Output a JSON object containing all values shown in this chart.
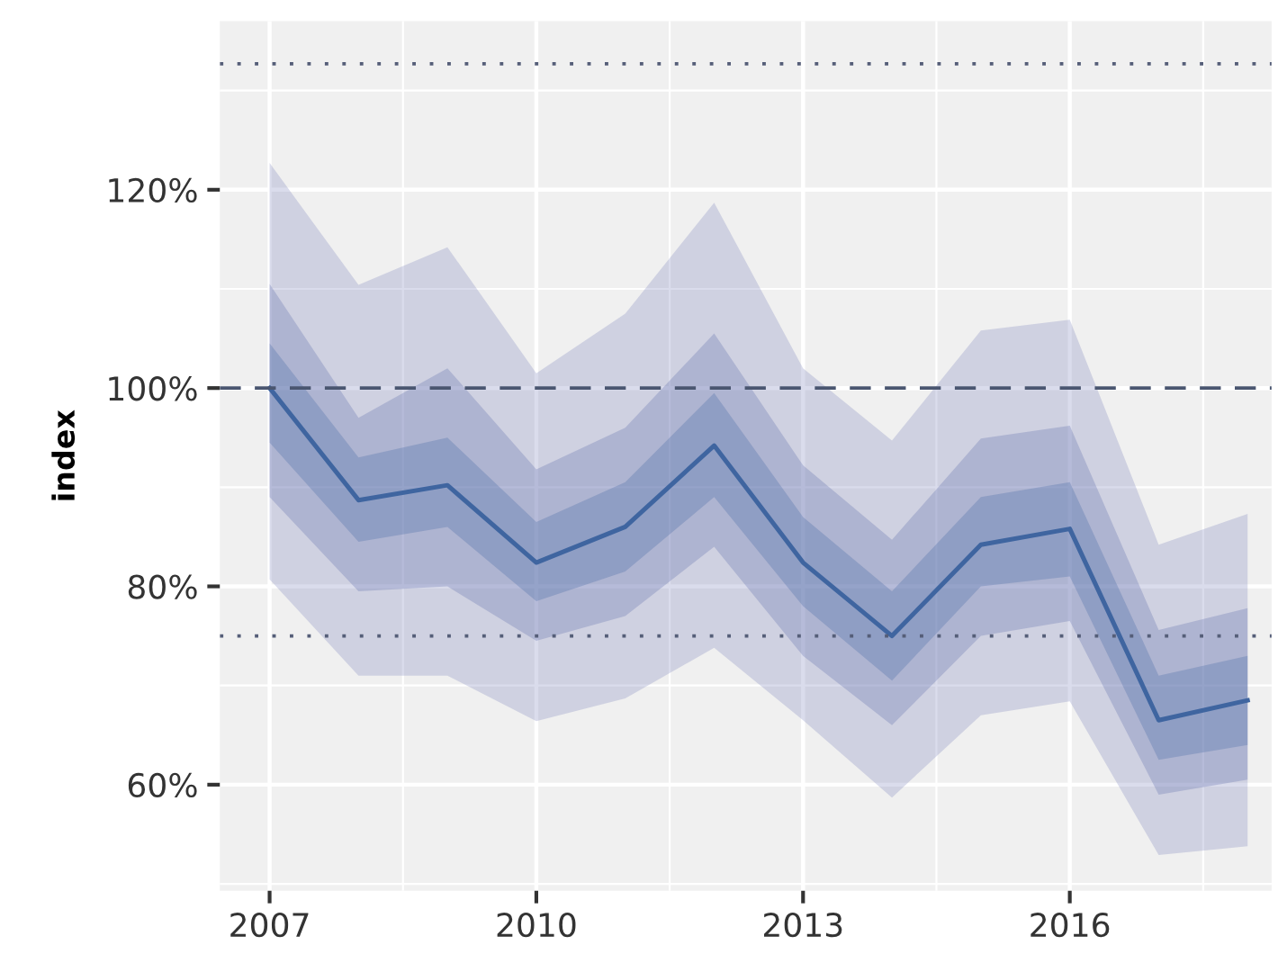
{
  "chart_data": {
    "type": "line",
    "ylabel": "index",
    "x": [
      2007,
      2008,
      2009,
      2010,
      2011,
      2012,
      2013,
      2014,
      2015,
      2016,
      2017,
      2018
    ],
    "series": [
      {
        "color": "#7b80bb",
        "values": [
          null,
          null,
          null,
          null,
          null,
          null,
          null,
          null,
          null,
          null,
          null,
          null
        ],
        "upper": [
          122.7,
          110.4,
          114.2,
          101.5,
          107.5,
          118.7,
          102,
          94.7,
          105.8,
          106.9,
          84.2,
          87.3
        ],
        "lower": [
          80.7,
          71,
          71,
          66.4,
          68.7,
          73.8,
          66.5,
          58.7,
          67,
          68.4,
          52.9,
          53.8
        ]
      },
      {
        "color": "#5a68aa",
        "values": [
          null,
          null,
          null,
          null,
          null,
          null,
          null,
          null,
          null,
          null,
          null,
          null
        ],
        "upper": [
          110.5,
          97,
          102,
          91.8,
          96,
          105.5,
          92.2,
          84.7,
          94.9,
          96.2,
          75.6,
          77.8
        ],
        "lower": [
          89,
          79.5,
          80,
          74.5,
          77,
          84,
          73,
          66,
          75,
          76.5,
          59,
          60.5
        ]
      },
      {
        "color": "#3f65a0",
        "values": [
          100,
          88.7,
          90.2,
          82.4,
          86,
          94.2,
          82.4,
          75,
          84.2,
          85.8,
          66.5,
          68.5
        ],
        "upper": [
          104.5,
          93,
          95,
          86.5,
          90.5,
          99.5,
          87,
          79.5,
          89,
          90.5,
          71,
          73
        ],
        "lower": [
          94.5,
          84.5,
          86,
          78.5,
          81.5,
          89,
          78,
          70.5,
          80,
          81,
          62.5,
          64
        ]
      }
    ],
    "xlim": [
      2006.44,
      2018.27
    ],
    "xticks": [
      2007,
      2010,
      2013,
      2016
    ],
    "ylim": [
      49.3,
      137
    ],
    "yticks": [
      {
        "value": 60,
        "label": "60%"
      },
      {
        "value": 80,
        "label": "80%"
      },
      {
        "value": 100,
        "label": "100%"
      },
      {
        "value": 120,
        "label": "120%"
      }
    ],
    "ref_lines": [
      {
        "axis": "y",
        "value": 132.7,
        "line_style": "dotted",
        "color": "#555e78"
      },
      {
        "axis": "y",
        "value": 100,
        "line_style": "dashed",
        "color": "#4a5670"
      },
      {
        "axis": "y",
        "value": 75,
        "line_style": "dotted",
        "color": "#555e78"
      }
    ],
    "grid": true,
    "legend": false
  }
}
